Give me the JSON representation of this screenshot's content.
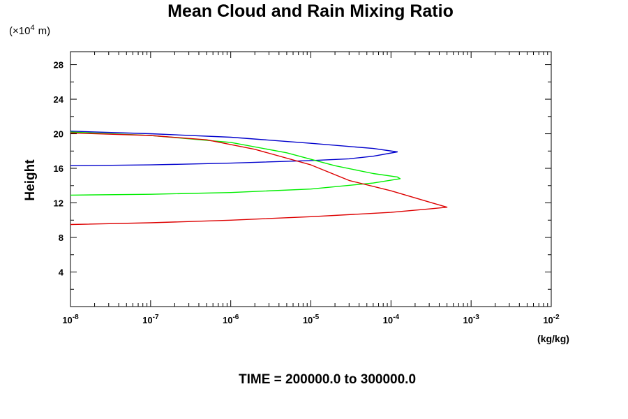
{
  "chart_data": {
    "type": "line",
    "title": "Mean Cloud and Rain Mixing Ratio",
    "ylabel": "Height",
    "y_multiplier_label": "(×10",
    "y_multiplier_exp": "4",
    "y_multiplier_unit": "m)",
    "xunit": "(kg/kg)",
    "caption": "TIME = 200000.0 to 300000.0",
    "xscale": "log",
    "xlim": [
      1e-08,
      0.01
    ],
    "ylim": [
      0,
      29.5
    ],
    "x_tick_labels": [
      {
        "base": "10",
        "exp": "-8"
      },
      {
        "base": "10",
        "exp": "-7"
      },
      {
        "base": "10",
        "exp": "-6"
      },
      {
        "base": "10",
        "exp": "-5"
      },
      {
        "base": "10",
        "exp": "-4"
      },
      {
        "base": "10",
        "exp": "-3"
      },
      {
        "base": "10",
        "exp": "-2"
      }
    ],
    "y_ticks": [
      4,
      8,
      12,
      16,
      20,
      24,
      28
    ],
    "y_tick_labels": [
      "4",
      "8",
      "12",
      "16",
      "20",
      "24",
      "28"
    ],
    "grid": false,
    "series": [
      {
        "color": "#0000cc",
        "points": [
          [
            1e-08,
            16.3
          ],
          [
            1e-07,
            16.4
          ],
          [
            1e-06,
            16.6
          ],
          [
            1e-05,
            16.9
          ],
          [
            3e-05,
            17.1
          ],
          [
            6e-05,
            17.4
          ],
          [
            0.00012,
            17.9
          ],
          [
            6e-05,
            18.3
          ],
          [
            1e-05,
            18.9
          ],
          [
            1e-06,
            19.6
          ],
          [
            1e-07,
            20.0
          ],
          [
            1e-08,
            20.3
          ]
        ]
      },
      {
        "color": "#00ee00",
        "points": [
          [
            1e-08,
            12.9
          ],
          [
            1e-07,
            13.0
          ],
          [
            1e-06,
            13.2
          ],
          [
            1e-05,
            13.6
          ],
          [
            6e-05,
            14.3
          ],
          [
            0.00013,
            14.8
          ],
          [
            0.00012,
            15.0
          ],
          [
            6e-05,
            15.4
          ],
          [
            2e-05,
            16.3
          ],
          [
            5e-06,
            17.8
          ],
          [
            1e-06,
            19.0
          ],
          [
            1e-07,
            19.8
          ],
          [
            1e-08,
            20.2
          ]
        ]
      },
      {
        "color": "#dd0000",
        "points": [
          [
            1e-08,
            9.5
          ],
          [
            1e-07,
            9.7
          ],
          [
            1e-06,
            10.0
          ],
          [
            1e-05,
            10.4
          ],
          [
            0.0001,
            10.9
          ],
          [
            0.0003,
            11.3
          ],
          [
            0.0005,
            11.5
          ],
          [
            0.0003,
            12.1
          ],
          [
            0.0001,
            13.4
          ],
          [
            3e-05,
            14.6
          ],
          [
            1e-05,
            16.4
          ],
          [
            2e-06,
            18.2
          ],
          [
            5e-07,
            19.3
          ],
          [
            1e-07,
            19.8
          ],
          [
            1e-08,
            20.1
          ]
        ]
      }
    ]
  }
}
